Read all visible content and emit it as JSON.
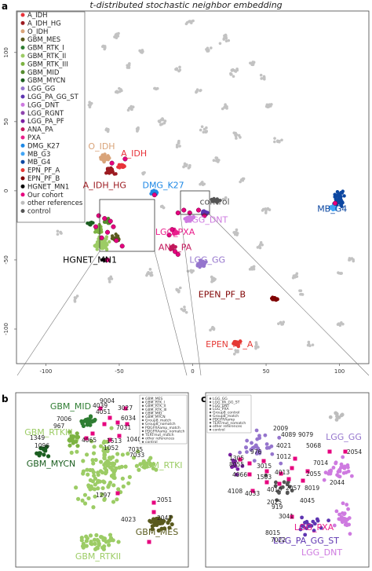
{
  "figure": {
    "title": "t-distributed stochastic neighbor embedding",
    "panels": [
      "a",
      "b",
      "c"
    ]
  },
  "chart_data": [
    {
      "type": "scatter",
      "panel": "a",
      "title": "t-distributed stochastic neighbor embedding",
      "x_ticks": [
        "-100",
        "-50",
        "0",
        "50",
        "100"
      ],
      "y_ticks": [
        "100",
        "50",
        "0",
        "-50",
        "-100"
      ],
      "xlim": [
        -120,
        120
      ],
      "ylim": [
        -125,
        130
      ],
      "legend": [
        {
          "label": "A_IDH",
          "color": "#e8333a",
          "shape": "circle"
        },
        {
          "label": "A_IDH_HG",
          "color": "#9c1b21",
          "shape": "circle"
        },
        {
          "label": "O_IDH",
          "color": "#d9a47a",
          "shape": "circle"
        },
        {
          "label": "GBM_MES",
          "color": "#5a5a1e",
          "shape": "circle"
        },
        {
          "label": "GBM_RTK_I",
          "color": "#2e7d32",
          "shape": "circle"
        },
        {
          "label": "GBM_RTK_II",
          "color": "#9ccc65",
          "shape": "circle"
        },
        {
          "label": "GBM_RTK_III",
          "color": "#7cb342",
          "shape": "circle"
        },
        {
          "label": "GBM_MID",
          "color": "#558b2f",
          "shape": "circle"
        },
        {
          "label": "GBM_MYCN",
          "color": "#1b5e20",
          "shape": "circle"
        },
        {
          "label": "LGG_GG",
          "color": "#9575cd",
          "shape": "circle"
        },
        {
          "label": "LGG_PA_GG_ST",
          "color": "#5e35b1",
          "shape": "circle"
        },
        {
          "label": "LGG_DNT",
          "color": "#ce7ae0",
          "shape": "circle"
        },
        {
          "label": "LGG_RGNT",
          "color": "#8e44ad",
          "shape": "circle"
        },
        {
          "label": "LGG_PA_PF",
          "color": "#7b1fa2",
          "shape": "circle"
        },
        {
          "label": "ANA_PA",
          "color": "#c2185b",
          "shape": "circle"
        },
        {
          "label": "PXA",
          "color": "#e91e8c",
          "shape": "circle"
        },
        {
          "label": "DMG_K27",
          "color": "#1e88e5",
          "shape": "circle"
        },
        {
          "label": "MB_G3",
          "color": "#42a5f5",
          "shape": "circle"
        },
        {
          "label": "MB_G4",
          "color": "#0d47a1",
          "shape": "circle"
        },
        {
          "label": "EPN_PF_A",
          "color": "#e53935",
          "shape": "circle"
        },
        {
          "label": "EPN_PF_B",
          "color": "#7f0000",
          "shape": "circle"
        },
        {
          "label": "HGNET_MN1",
          "color": "#000000",
          "shape": "circle"
        },
        {
          "label": "Our cohort",
          "color": "#e6007e",
          "shape": "circle"
        },
        {
          "label": "other references",
          "color": "#bdbdbd",
          "shape": "circle"
        },
        {
          "label": "control",
          "color": "#555555",
          "shape": "circle"
        }
      ],
      "cluster_labels": [
        {
          "text": "O_IDH",
          "x": -62,
          "y": 30,
          "color": "#d9a47a"
        },
        {
          "text": "A_IDH",
          "x": -40,
          "y": 25,
          "color": "#e8333a"
        },
        {
          "text": "A_IDH_HG",
          "x": -60,
          "y": 2,
          "color": "#9c1b21"
        },
        {
          "text": "DMG_K27",
          "x": -20,
          "y": 2,
          "color": "#1e88e5"
        },
        {
          "text": "control",
          "x": 15,
          "y": -10,
          "color": "#555555"
        },
        {
          "text": "MB_G4",
          "x": 95,
          "y": -15,
          "color": "#0d47a1"
        },
        {
          "text": "LGG_DNT",
          "x": 10,
          "y": -23,
          "color": "#ce7ae0"
        },
        {
          "text": "LGG_PXA",
          "x": -12,
          "y": -32,
          "color": "#e91e8c"
        },
        {
          "text": "ANA_PA",
          "x": -12,
          "y": -43,
          "color": "#c2185b"
        },
        {
          "text": "LGG_GG",
          "x": 10,
          "y": -52,
          "color": "#9575cd"
        },
        {
          "text": "HGNET_MN1",
          "x": -70,
          "y": -52,
          "color": "#000000"
        },
        {
          "text": "EPEN_PF_B",
          "x": 20,
          "y": -77,
          "color": "#7f0000"
        },
        {
          "text": "EPEN_PF_A",
          "x": 25,
          "y": -113,
          "color": "#e53935"
        }
      ]
    },
    {
      "type": "scatter",
      "panel": "b",
      "cluster_labels": [
        {
          "text": "GBM_MID",
          "color": "#2e7d32"
        },
        {
          "text": "GBM_RTKIII",
          "color": "#7cb342"
        },
        {
          "text": "GBM_MYCN",
          "color": "#1b5e20"
        },
        {
          "text": "GBM_RTKI",
          "color": "#9ccc65"
        },
        {
          "text": "GBM_MES",
          "color": "#5a5a1e"
        },
        {
          "text": "GBM_RTKII",
          "color": "#9ccc65"
        }
      ],
      "sample_ids": [
        "9004",
        "4039",
        "4051",
        "3027",
        "6034",
        "7006",
        "967",
        "7031",
        "1349",
        "1096",
        "4065",
        "1513",
        "1052",
        "1040",
        "7035",
        "7033",
        "2051",
        "1297",
        "2047",
        "4023"
      ],
      "legend": [
        "GBM_MES",
        "GBM_RTK_I",
        "GBM_RTK_II",
        "GBM_RTK_III",
        "GBM_MID",
        "GBM_MYCN",
        "Group8_match",
        "Group8_nomatch",
        "PDGFRAamp_match",
        "PDGFRAamp_nomatch",
        "TERTmut_match",
        "other references",
        "control"
      ]
    },
    {
      "type": "scatter",
      "panel": "c",
      "cluster_labels": [
        {
          "text": "LGG_GG",
          "color": "#9575cd"
        },
        {
          "text": "LGG_PXA",
          "color": "#e91e8c"
        },
        {
          "text": "LGG_PA_GG_ST",
          "color": "#5e35b1"
        },
        {
          "text": "LGG_DNT",
          "color": "#ce7ae0"
        }
      ],
      "sample_ids": [
        "2009",
        "4089",
        "9079",
        "4021",
        "5068",
        "1305",
        "976",
        "8055",
        "3015",
        "1012",
        "7014",
        "4066",
        "1503",
        "4013",
        "2054",
        "4010",
        "2057",
        "2055",
        "2025",
        "919",
        "8019",
        "4108",
        "4033",
        "3041",
        "4045",
        "2044",
        "8015",
        "7022"
      ],
      "legend": [
        "LGG_GG",
        "LGG_PA_GG_ST",
        "LGG_DNT",
        "LGG_PXA",
        "Group8_control",
        "Group8_match",
        "PDGFRAamp",
        "TERTmut_nomatch",
        "other references",
        "control"
      ]
    }
  ]
}
